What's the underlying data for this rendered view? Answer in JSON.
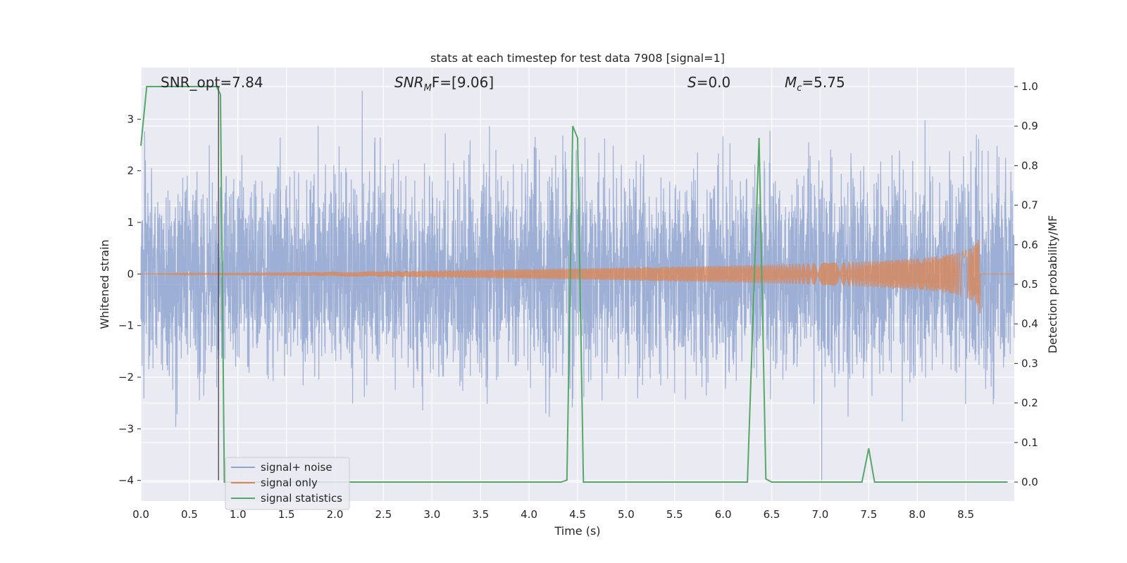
{
  "chart_data": {
    "type": "line",
    "title": "stats at each timestep for test data 7908 [signal=1]",
    "xlabel": "Time (s)",
    "ylabel": "Whitened strain",
    "y2label": "Detection probability/MF",
    "xlim": [
      0.0,
      9.0
    ],
    "ylim": [
      -4.4,
      4.0
    ],
    "y2lim": [
      -0.048,
      1.048
    ],
    "xticks": [
      "0.0",
      "0.5",
      "1.0",
      "1.5",
      "2.0",
      "2.5",
      "3.0",
      "3.5",
      "4.0",
      "4.5",
      "5.0",
      "5.5",
      "6.0",
      "6.5",
      "7.0",
      "7.5",
      "8.0",
      "8.5"
    ],
    "yticks": [
      "−4",
      "−3",
      "−2",
      "−1",
      "0",
      "1",
      "2",
      "3"
    ],
    "y2ticks": [
      "0.0",
      "0.1",
      "0.2",
      "0.3",
      "0.4",
      "0.5",
      "0.6",
      "0.7",
      "0.8",
      "0.9",
      "1.0"
    ],
    "grid": true,
    "legend_position": "lower-left",
    "annotations": {
      "snr_opt": "SNR_opt=7.84",
      "snr_mf": "SNR",
      "snr_mf_sub": "M",
      "snr_mf_rest": "F=[9.06]",
      "s_label": "S",
      "s_value": "=0.0",
      "mc_label": "M",
      "mc_sub": "c",
      "mc_value": "=5.75"
    },
    "vline_x": 0.8,
    "series": [
      {
        "name": "signal+ noise",
        "color": "#8fa5cf",
        "noise_sigma": 0.95,
        "sample_rate": 512
      },
      {
        "name": "signal only",
        "color": "#dd8452",
        "chirp_start": 0.0,
        "chirp_end": 8.65,
        "peak_amplitude": 0.8
      },
      {
        "name": "signal statistics",
        "color": "#55a868",
        "x": [
          0.0,
          0.06,
          0.1,
          0.3,
          0.5,
          0.78,
          0.82,
          0.86,
          1.0,
          1.5,
          2.0,
          2.5,
          3.0,
          3.5,
          4.0,
          4.33,
          4.39,
          4.45,
          4.5,
          4.56,
          5.0,
          5.5,
          6.0,
          6.25,
          6.37,
          6.44,
          6.5,
          7.0,
          7.43,
          7.5,
          7.56,
          8.0,
          8.5,
          8.93
        ],
        "y": [
          0.85,
          1.0,
          1.0,
          1.0,
          1.0,
          1.0,
          0.98,
          0.0,
          0.0,
          0.0,
          0.0,
          0.0,
          0.0,
          0.0,
          0.0,
          0.0,
          0.005,
          0.9,
          0.87,
          0.0,
          0.0,
          0.0,
          0.0,
          0.0,
          0.87,
          0.008,
          0.0,
          0.0,
          0.0,
          0.085,
          0.0,
          0.0,
          0.0,
          0.0
        ]
      }
    ]
  }
}
